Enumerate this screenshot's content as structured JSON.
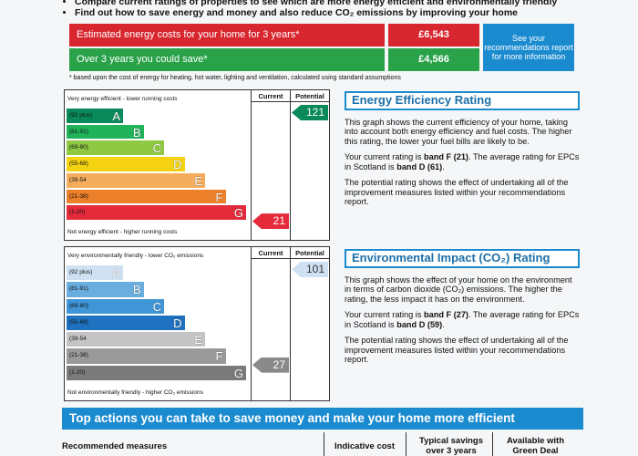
{
  "header": {
    "bullets": [
      "Compare current ratings of properties to see which are more energy efficient and environmentally friendly",
      "Find out how to save energy and money and also reduce CO₂ emissions by improving your home"
    ]
  },
  "costs": {
    "rows": [
      {
        "label": "Estimated energy costs for your home for 3 years*",
        "value": "£6,543"
      },
      {
        "label": "Over 3 years you could save*",
        "value": "£4,566"
      }
    ],
    "note": "See your recommendations report for more information",
    "footnote": "* based upon the cost of energy for heating, hot water, lighting and ventilation, calculated using standard assumptions"
  },
  "charts": [
    {
      "top_label": "Very energy efficient - lower running costs",
      "bottom_label": "Not energy efficient - higher running costs",
      "current_header": "Current",
      "potential_header": "Potential",
      "bands": [
        {
          "range": "(92 plus)",
          "letter": "A",
          "color": "#0a8a5a"
        },
        {
          "range": "(81-91)",
          "letter": "B",
          "color": "#21b35a"
        },
        {
          "range": "(69-80)",
          "letter": "C",
          "color": "#8fc843"
        },
        {
          "range": "(55-68)",
          "letter": "D",
          "color": "#f5d312"
        },
        {
          "range": "(39-54",
          "letter": "E",
          "color": "#f4ad5c"
        },
        {
          "range": "(21-38)",
          "letter": "F",
          "color": "#ec7f2a"
        },
        {
          "range": "(1-20)",
          "letter": "G",
          "color": "#e52a3b"
        }
      ],
      "current": "21",
      "potential": "121",
      "heading": "Energy Efficiency Rating",
      "paragraphs": [
        [
          "This graph shows the current efficiency of your home, taking into account both energy efficiency and fuel costs. The higher this rating, the lower your fuel bills are likely to be."
        ],
        [
          "Your current rating is ",
          "band F (21)",
          ". The average rating for EPCs in Scotland is ",
          "band D (61)",
          "."
        ],
        [
          "The potential rating shows the effect of undertaking all of the improvement measures listed within your recommendations report."
        ]
      ]
    },
    {
      "top_label": "Very environmentally friendly - lower CO₂ emissions",
      "bottom_label": "Not environmentally friendly - higher CO₂ emissions",
      "current_header": "Current",
      "potential_header": "Potential",
      "bands": [
        {
          "range": "(92 plus)",
          "letter": "A",
          "color": "#cfe0f2"
        },
        {
          "range": "(81-91)",
          "letter": "B",
          "color": "#6aaee0"
        },
        {
          "range": "(69-80)",
          "letter": "C",
          "color": "#3f95d6"
        },
        {
          "range": "(55-68)",
          "letter": "D",
          "color": "#1f72bf"
        },
        {
          "range": "(39-54",
          "letter": "E",
          "color": "#c4c4c4"
        },
        {
          "range": "(21-38)",
          "letter": "F",
          "color": "#9a9a9a"
        },
        {
          "range": "(1-20)",
          "letter": "G",
          "color": "#7a7a7a"
        }
      ],
      "current": "27",
      "potential": "101",
      "heading": "Environmental Impact (CO₂) Rating",
      "paragraphs": [
        [
          "This graph shows the effect of your home on the environment in terms of carbon dioxide (CO₂) emissions. The higher the rating, the less impact it has on the environment."
        ],
        [
          "Your current rating is ",
          "band F (27)",
          ". The average rating for EPCs in Scotland is ",
          "band D (59)",
          "."
        ],
        [
          "The potential rating shows the effect of undertaking all of the improvement measures listed within your recommendations report."
        ]
      ]
    }
  ],
  "actions": {
    "banner": "Top actions you can take to save money and make your home more efficient",
    "columns": [
      "Recommended measures",
      "Indicative cost",
      "Typical savings over 3 years",
      "Available with Green Deal"
    ]
  }
}
